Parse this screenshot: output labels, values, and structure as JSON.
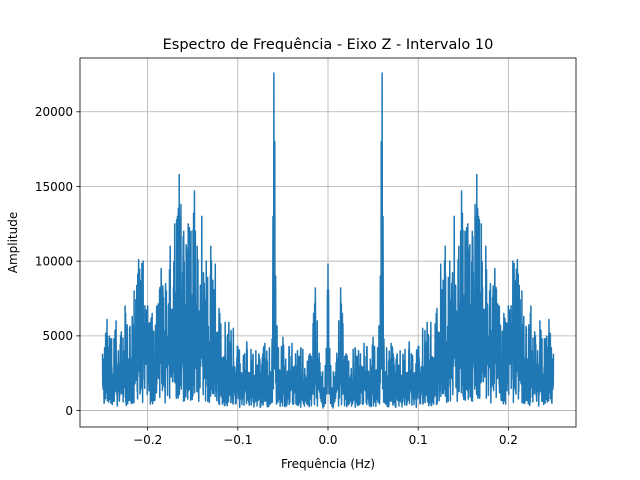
{
  "chart_data": {
    "type": "line",
    "title": "Espectro de Frequência - Eixo Z - Intervalo 10",
    "xlabel": "Frequência (Hz)",
    "ylabel": "Amplitude",
    "xlim": [
      -0.275,
      0.275
    ],
    "ylim": [
      -1100,
      23600
    ],
    "xticks": [
      {
        "value": -0.2,
        "label": "−0.2"
      },
      {
        "value": -0.1,
        "label": "−0.1"
      },
      {
        "value": 0.0,
        "label": "0.0"
      },
      {
        "value": 0.1,
        "label": "0.1"
      },
      {
        "value": 0.2,
        "label": "0.2"
      }
    ],
    "yticks": [
      {
        "value": 0,
        "label": "0"
      },
      {
        "value": 5000,
        "label": "5000"
      },
      {
        "value": 10000,
        "label": "10000"
      },
      {
        "value": 15000,
        "label": "15000"
      },
      {
        "value": 20000,
        "label": "20000"
      }
    ],
    "grid": true,
    "color": "#1f77b4",
    "series": [
      {
        "x": [
          0.0,
          0.003,
          0.006,
          0.009,
          0.012,
          0.014,
          0.016,
          0.02,
          0.03,
          0.04,
          0.05,
          0.055,
          0.058,
          0.059,
          0.06,
          0.061,
          0.062,
          0.065,
          0.07,
          0.08,
          0.09,
          0.1,
          0.105,
          0.11,
          0.12,
          0.125,
          0.13,
          0.135,
          0.14,
          0.145,
          0.148,
          0.152,
          0.155,
          0.16,
          0.163,
          0.165,
          0.167,
          0.17,
          0.175,
          0.18,
          0.185,
          0.19,
          0.195,
          0.2,
          0.205,
          0.21,
          0.215,
          0.22,
          0.225,
          0.23,
          0.235,
          0.24,
          0.245,
          0.25
        ],
        "envelope": [
          9800,
          3000,
          2600,
          3200,
          6000,
          8200,
          6500,
          3800,
          4200,
          4500,
          4900,
          4200,
          9000,
          18000,
          22600,
          13000,
          4800,
          4200,
          4500,
          4000,
          4600,
          4300,
          5500,
          5900,
          6500,
          9800,
          11000,
          10000,
          13000,
          11000,
          14700,
          12000,
          12500,
          12000,
          13800,
          15800,
          13000,
          12500,
          11000,
          8500,
          9500,
          7000,
          6500,
          7000,
          10000,
          10100,
          8000,
          5500,
          7000,
          5000,
          6000,
          4800,
          6100,
          3800
        ]
      }
    ]
  }
}
